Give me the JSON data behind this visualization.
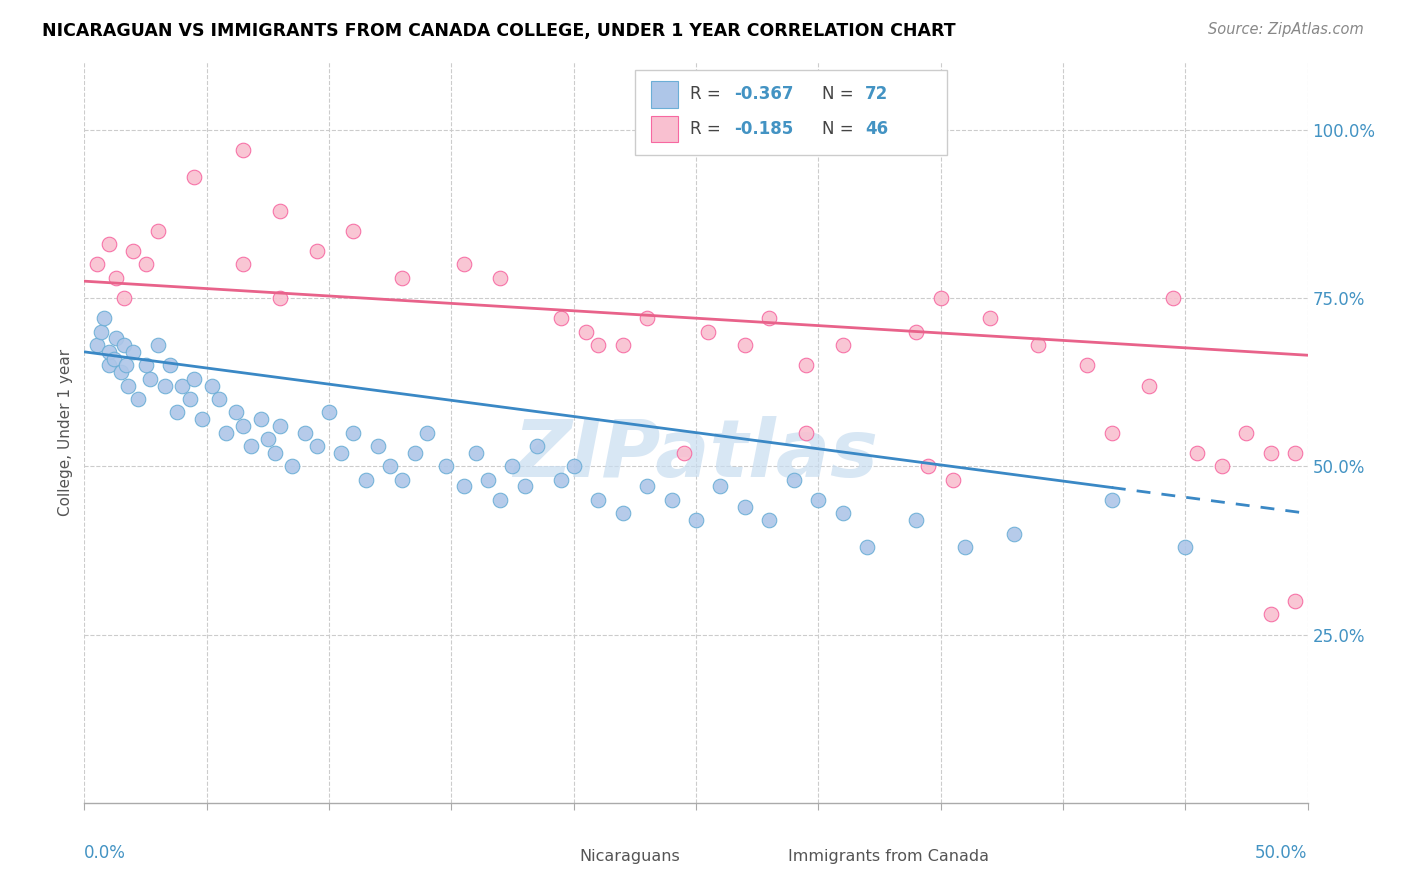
{
  "title": "NICARAGUAN VS IMMIGRANTS FROM CANADA COLLEGE, UNDER 1 YEAR CORRELATION CHART",
  "source_text": "Source: ZipAtlas.com",
  "ylabel": "College, Under 1 year",
  "yticks": [
    "25.0%",
    "50.0%",
    "75.0%",
    "100.0%"
  ],
  "ytick_vals": [
    0.25,
    0.5,
    0.75,
    1.0
  ],
  "xlim": [
    0.0,
    0.5
  ],
  "ylim": [
    0.0,
    1.1
  ],
  "blue_color": "#aec6e8",
  "blue_edge_color": "#6baed6",
  "pink_color": "#f9c0d0",
  "pink_edge_color": "#f768a1",
  "blue_line_color": "#3a88c5",
  "pink_line_color": "#e8628a",
  "legend_text1": "Nicaraguans",
  "legend_text2": "Immigrants from Canada",
  "watermark_text": "ZIPatlas",
  "blue_line_solid_end": 0.42,
  "blue_line_x_end": 0.5,
  "blue_line_y0": 0.67,
  "blue_line_slope": -0.48,
  "pink_line_y0": 0.775,
  "pink_line_slope": -0.22,
  "pink_line_x_end": 0.5,
  "blue_x": [
    0.005,
    0.007,
    0.008,
    0.01,
    0.01,
    0.012,
    0.013,
    0.015,
    0.016,
    0.017,
    0.018,
    0.02,
    0.022,
    0.025,
    0.027,
    0.03,
    0.033,
    0.035,
    0.038,
    0.04,
    0.043,
    0.045,
    0.048,
    0.052,
    0.055,
    0.058,
    0.062,
    0.065,
    0.068,
    0.072,
    0.075,
    0.078,
    0.08,
    0.085,
    0.09,
    0.095,
    0.1,
    0.105,
    0.11,
    0.115,
    0.12,
    0.125,
    0.13,
    0.135,
    0.14,
    0.148,
    0.155,
    0.16,
    0.165,
    0.17,
    0.175,
    0.18,
    0.185,
    0.195,
    0.2,
    0.21,
    0.22,
    0.23,
    0.24,
    0.25,
    0.26,
    0.27,
    0.28,
    0.29,
    0.3,
    0.31,
    0.32,
    0.34,
    0.36,
    0.38,
    0.42,
    0.45
  ],
  "blue_y": [
    0.68,
    0.7,
    0.72,
    0.65,
    0.67,
    0.66,
    0.69,
    0.64,
    0.68,
    0.65,
    0.62,
    0.67,
    0.6,
    0.65,
    0.63,
    0.68,
    0.62,
    0.65,
    0.58,
    0.62,
    0.6,
    0.63,
    0.57,
    0.62,
    0.6,
    0.55,
    0.58,
    0.56,
    0.53,
    0.57,
    0.54,
    0.52,
    0.56,
    0.5,
    0.55,
    0.53,
    0.58,
    0.52,
    0.55,
    0.48,
    0.53,
    0.5,
    0.48,
    0.52,
    0.55,
    0.5,
    0.47,
    0.52,
    0.48,
    0.45,
    0.5,
    0.47,
    0.53,
    0.48,
    0.5,
    0.45,
    0.43,
    0.47,
    0.45,
    0.42,
    0.47,
    0.44,
    0.42,
    0.48,
    0.45,
    0.43,
    0.38,
    0.42,
    0.38,
    0.4,
    0.45,
    0.38
  ],
  "pink_x": [
    0.005,
    0.01,
    0.013,
    0.016,
    0.02,
    0.025,
    0.03,
    0.045,
    0.065,
    0.08,
    0.095,
    0.11,
    0.13,
    0.155,
    0.17,
    0.195,
    0.21,
    0.23,
    0.255,
    0.27,
    0.28,
    0.295,
    0.31,
    0.34,
    0.35,
    0.37,
    0.39,
    0.41,
    0.42,
    0.435,
    0.445,
    0.455,
    0.465,
    0.475,
    0.485,
    0.495,
    0.345,
    0.355,
    0.245,
    0.295,
    0.065,
    0.08,
    0.205,
    0.22,
    0.485,
    0.495
  ],
  "pink_y": [
    0.8,
    0.83,
    0.78,
    0.75,
    0.82,
    0.8,
    0.85,
    0.93,
    0.97,
    0.88,
    0.82,
    0.85,
    0.78,
    0.8,
    0.78,
    0.72,
    0.68,
    0.72,
    0.7,
    0.68,
    0.72,
    0.65,
    0.68,
    0.7,
    0.75,
    0.72,
    0.68,
    0.65,
    0.55,
    0.62,
    0.75,
    0.52,
    0.5,
    0.55,
    0.52,
    0.52,
    0.5,
    0.48,
    0.52,
    0.55,
    0.8,
    0.75,
    0.7,
    0.68,
    0.28,
    0.3
  ]
}
